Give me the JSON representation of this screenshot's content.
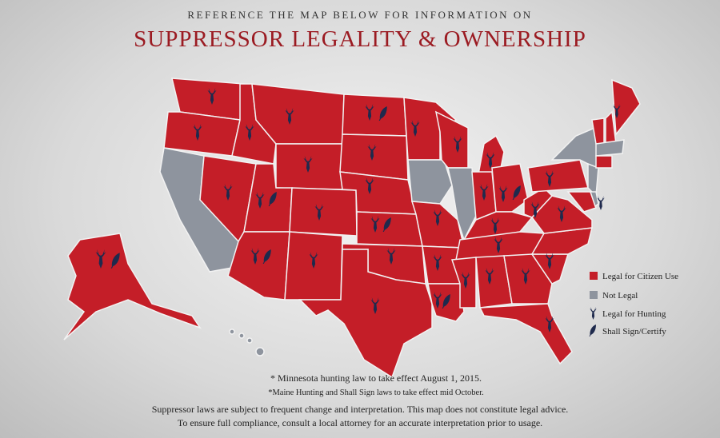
{
  "header": {
    "subtitle": "REFERENCE THE MAP BELOW FOR INFORMATION ON",
    "title": "SUPPRESSOR LEGALITY & OWNERSHIP"
  },
  "legend": {
    "items": [
      "Legal for Citizen Use",
      "Not Legal",
      "Legal for Hunting",
      "Shall Sign/Certify"
    ]
  },
  "footnotes": [
    "* Minnesota hunting law to take effect August 1, 2015.",
    "*Maine Hunting and Shall Sign laws to take effect mid October."
  ],
  "disclaimer": [
    "Suppressor laws are subject to frequent change and interpretation. This map does not constitute legal advice.",
    "To ensure full compliance, consult a local attorney for an accurate interpretation prior to usage."
  ]
}
